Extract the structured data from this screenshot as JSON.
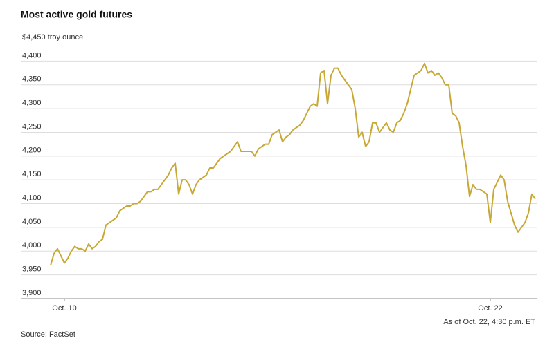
{
  "chart_data": {
    "type": "line",
    "title": "Most active gold futures",
    "source": "Source: FactSet",
    "note": "As of Oct. 22, 4:30 p.m. ET",
    "categories": [
      null,
      null,
      null,
      null,
      "Oct. 10",
      null,
      null,
      null,
      null,
      null,
      null,
      null,
      null,
      null,
      null,
      null,
      null,
      null,
      null,
      null,
      null,
      null,
      null,
      null,
      null,
      null,
      null,
      null,
      null,
      null,
      null,
      null,
      null,
      null,
      null,
      null,
      null,
      null,
      null,
      null,
      null,
      null,
      null,
      null,
      null,
      null,
      null,
      null,
      null,
      null,
      null,
      null,
      null,
      null,
      null,
      null,
      null,
      null,
      null,
      null,
      null,
      null,
      null,
      null,
      null,
      null,
      null,
      null,
      null,
      null,
      null,
      null,
      null,
      null,
      null,
      null,
      null,
      null,
      null,
      null,
      null,
      null,
      null,
      null,
      null,
      null,
      null,
      null,
      null,
      null,
      null,
      null,
      null,
      null,
      null,
      null,
      null,
      null,
      null,
      null,
      null,
      null,
      null,
      null,
      null,
      null,
      null,
      null,
      null,
      null,
      null,
      null,
      null,
      null,
      null,
      null,
      null,
      null,
      null,
      null,
      null,
      null,
      null,
      null,
      null,
      null,
      null,
      "Oct. 22",
      null,
      null,
      null,
      null,
      null,
      null,
      null,
      null,
      null,
      null,
      null,
      null,
      null
    ],
    "series": [
      {
        "name": "Gold futures",
        "color": "#c8a835",
        "values": [
          3970,
          3995,
          4005,
          3990,
          3975,
          3985,
          4000,
          4010,
          4005,
          4005,
          4000,
          4015,
          4005,
          4010,
          4020,
          4025,
          4055,
          4060,
          4065,
          4070,
          4085,
          4090,
          4095,
          4095,
          4100,
          4100,
          4105,
          4115,
          4125,
          4125,
          4130,
          4130,
          4140,
          4150,
          4160,
          4175,
          4185,
          4120,
          4150,
          4150,
          4140,
          4120,
          4140,
          4150,
          4155,
          4160,
          4175,
          4175,
          4185,
          4195,
          4200,
          4205,
          4210,
          4220,
          4230,
          4210,
          4210,
          4210,
          4210,
          4200,
          4215,
          4220,
          4225,
          4225,
          4245,
          4250,
          4255,
          4230,
          4240,
          4245,
          4255,
          4260,
          4265,
          4275,
          4290,
          4305,
          4310,
          4305,
          4375,
          4380,
          4310,
          4370,
          4385,
          4385,
          4370,
          4360,
          4350,
          4340,
          4300,
          4240,
          4250,
          4220,
          4230,
          4270,
          4270,
          4250,
          4260,
          4270,
          4255,
          4250,
          4270,
          4275,
          4290,
          4310,
          4340,
          4370,
          4375,
          4380,
          4395,
          4375,
          4380,
          4370,
          4375,
          4365,
          4350,
          4350,
          4290,
          4285,
          4270,
          4220,
          4180,
          4115,
          4140,
          4130,
          4130,
          4125,
          4120,
          4060,
          4130,
          4145,
          4160,
          4150,
          4105,
          4080,
          4055,
          4040,
          4050,
          4060,
          4080,
          4120,
          4110
        ]
      }
    ],
    "ylim": [
      3900,
      4450
    ],
    "yticks": [
      {
        "value": 3900,
        "label": "3,900"
      },
      {
        "value": 3950,
        "label": "3,950"
      },
      {
        "value": 4000,
        "label": "4,000"
      },
      {
        "value": 4050,
        "label": "4,050"
      },
      {
        "value": 4100,
        "label": "4,100"
      },
      {
        "value": 4150,
        "label": "4,150"
      },
      {
        "value": 4200,
        "label": "4,200"
      },
      {
        "value": 4250,
        "label": "4,250"
      },
      {
        "value": 4300,
        "label": "4,300"
      },
      {
        "value": 4350,
        "label": "4,350"
      },
      {
        "value": 4400,
        "label": "4,400"
      },
      {
        "value": 4450,
        "label": "$4,450 troy ounce"
      }
    ],
    "grid": true
  }
}
